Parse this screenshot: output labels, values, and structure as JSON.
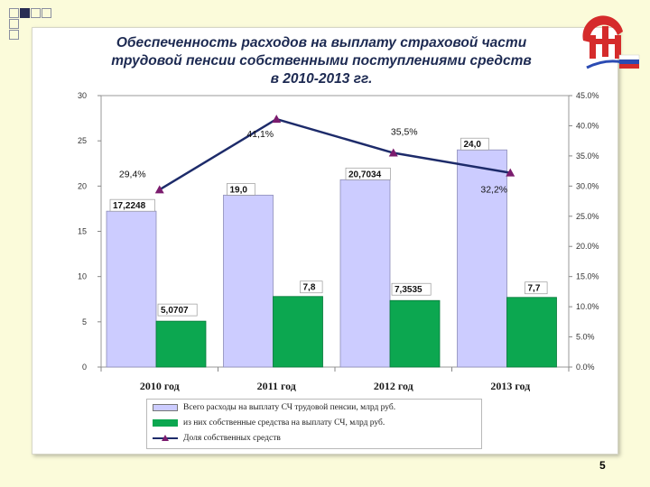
{
  "slide": {
    "page_number": "5"
  },
  "title": {
    "line1": "Обеспеченность расходов на выплату страховой части",
    "line2": "трудовой пенсии собственными поступлениями средств",
    "line3": "в 2010-2013 гг."
  },
  "logo": {
    "name": "pfr-logo-icon"
  },
  "colors": {
    "bar_total": "#ccccff",
    "bar_own": "#0ca750",
    "line": "#1d2b6a",
    "marker": "#7b1c6e",
    "slide_bg": "#fbfbda"
  },
  "chart_data": {
    "type": "bar",
    "categories": [
      "2010 год",
      "2011 год",
      "2012 год",
      "2013 год"
    ],
    "series": [
      {
        "name": "Всего расходы на выплату СЧ трудовой пенсии, млрд руб.",
        "values": [
          17.2248,
          19.0,
          20.7034,
          24.0
        ],
        "labels": [
          "17,2248",
          "19,0",
          "20,7034",
          "24,0"
        ],
        "axis": "left"
      },
      {
        "name": "из них собственные средства на выплату СЧ, млрд руб.",
        "values": [
          5.0707,
          7.8,
          7.3535,
          7.7
        ],
        "labels": [
          "5,0707",
          "7,8",
          "7,3535",
          "7,7"
        ],
        "axis": "left"
      },
      {
        "name": "Доля собственных средств",
        "type": "line",
        "values": [
          29.4,
          41.1,
          35.5,
          32.2
        ],
        "labels": [
          "29,4%",
          "41,1%",
          "35,5%",
          "32,2%"
        ],
        "axis": "right"
      }
    ],
    "ylim_left": [
      0,
      30
    ],
    "yticks_left": [
      "0",
      "5",
      "10",
      "15",
      "20",
      "25",
      "30"
    ],
    "ylim_right": [
      0,
      45
    ],
    "yticks_right": [
      "0.0%",
      "5.0%",
      "10.0%",
      "15.0%",
      "20.0%",
      "25.0%",
      "30.0%",
      "35.0%",
      "40.0%",
      "45.0%"
    ],
    "grid": false,
    "legend_position": "bottom"
  },
  "legend": [
    {
      "label": "Всего расходы на выплату СЧ трудовой пенсии, млрд руб."
    },
    {
      "label": "из них собственные средства на выплату СЧ, млрд руб."
    },
    {
      "label": "Доля собственных средств"
    }
  ]
}
